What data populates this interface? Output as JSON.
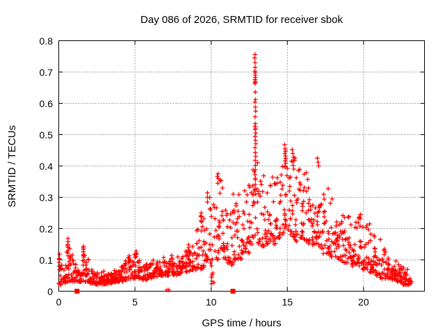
{
  "chart_data": {
    "type": "scatter",
    "title": "Day 086 of 2026, SRMTID for receiver sbok",
    "xlabel": "GPS time / hours",
    "ylabel": "SRMTID / TECUs",
    "xlim": [
      0,
      24
    ],
    "ylim": [
      0,
      0.8
    ],
    "xticks": [
      0,
      5,
      10,
      15,
      20
    ],
    "yticks": [
      0,
      0.1,
      0.2,
      0.3,
      0.4,
      0.5,
      0.6,
      0.7,
      0.8
    ],
    "xtick_labels": [
      "0",
      "5",
      "10",
      "15",
      "20"
    ],
    "ytick_labels": [
      "0",
      "0.1",
      "0.2",
      "0.3",
      "0.4",
      "0.5",
      "0.6",
      "0.7",
      "0.8"
    ],
    "grid": true,
    "legend": "none",
    "marker": "plus",
    "colors": {
      "points": "#ff0000",
      "grid": "#9a9a9a",
      "frame": "#000000",
      "text": "#000000"
    },
    "seed": 86,
    "skew": 1.8,
    "density_bins": [
      [
        0.0,
        0.02,
        0.11,
        15
      ],
      [
        0.25,
        0.025,
        0.1,
        15
      ],
      [
        0.5,
        0.03,
        0.16,
        16
      ],
      [
        0.75,
        0.03,
        0.12,
        15
      ],
      [
        1.0,
        0.03,
        0.09,
        15
      ],
      [
        1.25,
        0.03,
        0.1,
        15
      ],
      [
        1.5,
        0.03,
        0.14,
        16
      ],
      [
        1.75,
        0.03,
        0.11,
        15
      ],
      [
        2.0,
        0.025,
        0.07,
        16
      ],
      [
        2.25,
        0.022,
        0.06,
        16
      ],
      [
        2.5,
        0.022,
        0.06,
        16
      ],
      [
        2.75,
        0.022,
        0.065,
        16
      ],
      [
        3.0,
        0.022,
        0.06,
        16
      ],
      [
        3.25,
        0.025,
        0.06,
        16
      ],
      [
        3.5,
        0.028,
        0.07,
        16
      ],
      [
        3.75,
        0.03,
        0.07,
        16
      ],
      [
        4.0,
        0.03,
        0.08,
        15
      ],
      [
        4.25,
        0.035,
        0.1,
        14
      ],
      [
        4.5,
        0.04,
        0.11,
        14
      ],
      [
        4.75,
        0.04,
        0.12,
        14
      ],
      [
        5.0,
        0.045,
        0.125,
        14
      ],
      [
        5.25,
        0.04,
        0.11,
        14
      ],
      [
        5.5,
        0.035,
        0.09,
        14
      ],
      [
        5.75,
        0.04,
        0.09,
        14
      ],
      [
        6.0,
        0.04,
        0.1,
        14
      ],
      [
        6.25,
        0.045,
        0.1,
        14
      ],
      [
        6.5,
        0.05,
        0.11,
        14
      ],
      [
        6.75,
        0.05,
        0.11,
        14
      ],
      [
        7.0,
        0.05,
        0.11,
        14
      ],
      [
        7.25,
        0.055,
        0.115,
        14
      ],
      [
        7.5,
        0.05,
        0.11,
        14
      ],
      [
        7.75,
        0.055,
        0.115,
        14
      ],
      [
        8.0,
        0.06,
        0.12,
        14
      ],
      [
        8.25,
        0.06,
        0.13,
        14
      ],
      [
        8.5,
        0.06,
        0.14,
        14
      ],
      [
        8.75,
        0.065,
        0.16,
        13
      ],
      [
        9.0,
        0.07,
        0.21,
        13
      ],
      [
        9.25,
        0.07,
        0.26,
        13
      ],
      [
        9.5,
        0.08,
        0.31,
        13
      ],
      [
        9.75,
        0.09,
        0.33,
        13
      ],
      [
        10.0,
        0.02,
        0.28,
        13
      ],
      [
        10.25,
        0.1,
        0.37,
        13
      ],
      [
        10.5,
        0.12,
        0.36,
        13
      ],
      [
        10.75,
        0.1,
        0.33,
        13
      ],
      [
        11.0,
        0.09,
        0.28,
        13
      ],
      [
        11.25,
        0.08,
        0.26,
        13
      ],
      [
        11.5,
        0.1,
        0.3,
        13
      ],
      [
        11.75,
        0.1,
        0.32,
        13
      ],
      [
        12.0,
        0.12,
        0.34,
        13
      ],
      [
        12.25,
        0.12,
        0.38,
        13
      ],
      [
        12.5,
        0.15,
        0.38,
        13
      ],
      [
        12.75,
        0.17,
        0.4,
        12
      ],
      [
        13.0,
        0.15,
        0.44,
        12
      ],
      [
        13.25,
        0.14,
        0.38,
        12
      ],
      [
        13.5,
        0.15,
        0.35,
        13
      ],
      [
        13.75,
        0.16,
        0.36,
        13
      ],
      [
        14.0,
        0.15,
        0.37,
        13
      ],
      [
        14.25,
        0.17,
        0.38,
        13
      ],
      [
        14.5,
        0.18,
        0.4,
        13
      ],
      [
        14.75,
        0.2,
        0.44,
        13
      ],
      [
        15.0,
        0.18,
        0.43,
        13
      ],
      [
        15.25,
        0.17,
        0.43,
        13
      ],
      [
        15.5,
        0.16,
        0.42,
        13
      ],
      [
        15.75,
        0.17,
        0.4,
        13
      ],
      [
        16.0,
        0.16,
        0.38,
        13
      ],
      [
        16.25,
        0.15,
        0.36,
        13
      ],
      [
        16.5,
        0.14,
        0.35,
        13
      ],
      [
        16.75,
        0.15,
        0.4,
        13
      ],
      [
        17.0,
        0.14,
        0.39,
        13
      ],
      [
        17.25,
        0.12,
        0.35,
        13
      ],
      [
        17.5,
        0.12,
        0.33,
        13
      ],
      [
        17.75,
        0.11,
        0.3,
        13
      ],
      [
        18.0,
        0.11,
        0.28,
        13
      ],
      [
        18.25,
        0.1,
        0.27,
        13
      ],
      [
        18.5,
        0.09,
        0.28,
        13
      ],
      [
        18.75,
        0.09,
        0.26,
        13
      ],
      [
        19.0,
        0.08,
        0.24,
        13
      ],
      [
        19.25,
        0.08,
        0.22,
        13
      ],
      [
        19.5,
        0.08,
        0.24,
        13
      ],
      [
        19.75,
        0.07,
        0.22,
        13
      ],
      [
        20.0,
        0.07,
        0.22,
        13
      ],
      [
        20.25,
        0.06,
        0.21,
        13
      ],
      [
        20.5,
        0.05,
        0.18,
        13
      ],
      [
        20.75,
        0.05,
        0.16,
        13
      ],
      [
        21.0,
        0.04,
        0.16,
        13
      ],
      [
        21.25,
        0.04,
        0.14,
        13
      ],
      [
        21.5,
        0.04,
        0.12,
        14
      ],
      [
        21.75,
        0.035,
        0.11,
        14
      ],
      [
        22.0,
        0.03,
        0.1,
        15
      ],
      [
        22.25,
        0.025,
        0.09,
        16
      ],
      [
        22.5,
        0.02,
        0.08,
        16
      ],
      [
        22.75,
        0.02,
        0.07,
        15
      ],
      [
        23.0,
        0.025,
        0.06,
        6,
        0.15
      ]
    ],
    "feature_points": [
      [
        12.86,
        0.745
      ],
      [
        12.88,
        0.756
      ],
      [
        12.88,
        0.73
      ],
      [
        12.89,
        0.715
      ],
      [
        12.87,
        0.703
      ],
      [
        12.9,
        0.697
      ],
      [
        12.89,
        0.69
      ],
      [
        12.91,
        0.683
      ],
      [
        12.88,
        0.676
      ],
      [
        12.9,
        0.671
      ],
      [
        12.89,
        0.667
      ],
      [
        12.87,
        0.663
      ],
      [
        12.9,
        0.636
      ],
      [
        12.91,
        0.612
      ],
      [
        12.88,
        0.604
      ],
      [
        12.9,
        0.588
      ],
      [
        12.92,
        0.575
      ],
      [
        12.89,
        0.557
      ],
      [
        12.9,
        0.535
      ],
      [
        12.88,
        0.527
      ],
      [
        12.91,
        0.521
      ],
      [
        12.9,
        0.516
      ],
      [
        12.92,
        0.505
      ],
      [
        12.89,
        0.494
      ],
      [
        12.91,
        0.482
      ],
      [
        12.93,
        0.471
      ],
      [
        12.88,
        0.458
      ],
      [
        12.9,
        0.443
      ],
      [
        12.92,
        0.431
      ],
      [
        12.89,
        0.418
      ],
      [
        12.91,
        0.402
      ],
      [
        12.9,
        0.388
      ],
      [
        12.88,
        0.372
      ],
      [
        12.91,
        0.356
      ],
      [
        12.9,
        0.341
      ],
      [
        12.89,
        0.325
      ],
      [
        12.92,
        0.31
      ],
      [
        14.82,
        0.468
      ],
      [
        14.85,
        0.455
      ],
      [
        14.88,
        0.447
      ],
      [
        14.84,
        0.44
      ],
      [
        14.87,
        0.432
      ],
      [
        14.9,
        0.424
      ],
      [
        14.86,
        0.416
      ],
      [
        14.89,
        0.409
      ],
      [
        15.32,
        0.452
      ],
      [
        15.36,
        0.44
      ],
      [
        15.4,
        0.428
      ],
      [
        15.35,
        0.415
      ],
      [
        15.38,
        0.402
      ],
      [
        15.42,
        0.39
      ],
      [
        16.97,
        0.425
      ],
      [
        17.02,
        0.412
      ],
      [
        17.06,
        0.4
      ],
      [
        9.35,
        0.25
      ],
      [
        9.36,
        0.238
      ],
      [
        9.34,
        0.225
      ],
      [
        9.75,
        0.3
      ],
      [
        9.76,
        0.285
      ],
      [
        10.45,
        0.375
      ],
      [
        10.46,
        0.36
      ],
      [
        10.44,
        0.345
      ],
      [
        11.45,
        0.31
      ],
      [
        0.6,
        0.168
      ],
      [
        0.61,
        0.158
      ],
      [
        0.59,
        0.149
      ],
      [
        0.6,
        0.14
      ],
      [
        0.62,
        0.131
      ],
      [
        0.6,
        0.122
      ],
      [
        0.61,
        0.113
      ],
      [
        1.62,
        0.143
      ],
      [
        1.63,
        0.134
      ],
      [
        1.61,
        0.126
      ],
      [
        1.62,
        0.117
      ],
      [
        1.64,
        0.109
      ],
      [
        4.62,
        0.113
      ],
      [
        4.63,
        0.105
      ],
      [
        4.61,
        0.097
      ],
      [
        5.08,
        0.128
      ],
      [
        5.09,
        0.119
      ],
      [
        5.07,
        0.111
      ],
      [
        8.52,
        0.148
      ],
      [
        8.53,
        0.139
      ],
      [
        8.51,
        0.13
      ],
      [
        0.05,
        0.118
      ],
      [
        0.04,
        0.105
      ],
      [
        19.8,
        0.245
      ],
      [
        19.79,
        0.232
      ],
      [
        20.4,
        0.215
      ],
      [
        21.1,
        0.165
      ]
    ],
    "square_markers": [
      [
        1.2,
        0
      ],
      [
        11.43,
        0
      ]
    ],
    "near_zero_points": [
      [
        7.1,
        0.004
      ],
      [
        7.22,
        0.004
      ]
    ]
  }
}
